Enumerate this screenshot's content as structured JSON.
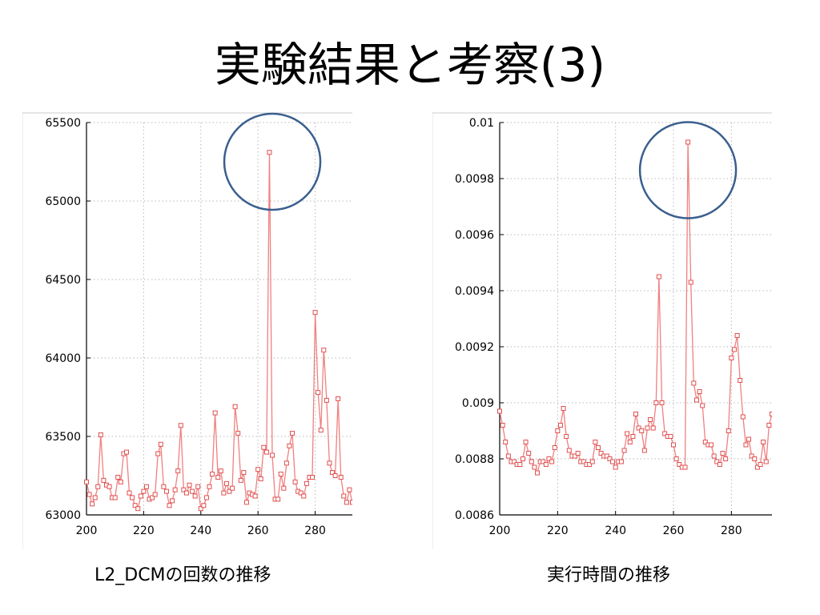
{
  "slide": {
    "title": "実験結果と考察(3)",
    "captions": [
      "L2_DCMの回数の推移",
      "実行時間の推移"
    ]
  },
  "colors": {
    "series": "#f08080",
    "marker": "#e05050",
    "circle": "#3a5f8f",
    "grid": "#b8b8b8"
  },
  "chart_data": [
    {
      "type": "line",
      "xlim": [
        200,
        293
      ],
      "ylim": [
        63000,
        65500
      ],
      "xticks": [
        200,
        220,
        240,
        260,
        280
      ],
      "yticks": [
        63000,
        63500,
        64000,
        64500,
        65000,
        65500
      ],
      "ytick_labels": [
        "63000",
        "63500",
        "64000",
        "64500",
        "65000",
        "65500"
      ],
      "grid": true,
      "annotation": {
        "type": "circle",
        "x": 265,
        "y": 65250
      },
      "series": [
        {
          "x": [
            200,
            201,
            202,
            203,
            204,
            205,
            206,
            207,
            208,
            209,
            210,
            211,
            212,
            213,
            214,
            215,
            216,
            217,
            218,
            219,
            220,
            221,
            222,
            223,
            224,
            225,
            226,
            227,
            228,
            229,
            230,
            231,
            232,
            233,
            234,
            235,
            236,
            237,
            238,
            239,
            240,
            241,
            242,
            243,
            244,
            245,
            246,
            247,
            248,
            249,
            250,
            251,
            252,
            253,
            254,
            255,
            256,
            257,
            258,
            259,
            260,
            261,
            262,
            263,
            264,
            265,
            266,
            267,
            268,
            269,
            270,
            271,
            272,
            273,
            274,
            275,
            276,
            277,
            278,
            279,
            280,
            281,
            282,
            283,
            284,
            285,
            286,
            287,
            288,
            289,
            290,
            291,
            292,
            293
          ],
          "y": [
            63210,
            63130,
            63070,
            63110,
            63180,
            63510,
            63220,
            63190,
            63180,
            63110,
            63110,
            63240,
            63210,
            63390,
            63400,
            63140,
            63110,
            63060,
            63040,
            63120,
            63150,
            63180,
            63100,
            63110,
            63130,
            63390,
            63450,
            63180,
            63150,
            63060,
            63090,
            63160,
            63280,
            63570,
            63160,
            63140,
            63190,
            63150,
            63120,
            63180,
            63040,
            63060,
            63110,
            63180,
            63260,
            63650,
            63240,
            63280,
            63140,
            63200,
            63150,
            63170,
            63690,
            63520,
            63220,
            63270,
            63080,
            63140,
            63130,
            63120,
            63290,
            63230,
            63430,
            63400,
            65310,
            63380,
            63100,
            63100,
            63260,
            63170,
            63330,
            63440,
            63520,
            63210,
            63150,
            63140,
            63120,
            63200,
            63240,
            63240,
            64290,
            63780,
            63540,
            64050,
            63730,
            63330,
            63270,
            63250,
            63740,
            63240,
            63120,
            63080,
            63160,
            63080
          ]
        }
      ]
    },
    {
      "type": "line",
      "xlim": [
        200,
        294
      ],
      "ylim": [
        0.0086,
        0.01
      ],
      "xticks": [
        200,
        220,
        240,
        260,
        280
      ],
      "yticks": [
        0.0086,
        0.0088,
        0.009,
        0.0092,
        0.0094,
        0.0096,
        0.0098,
        0.01
      ],
      "ytick_labels": [
        "0.0086",
        "0.0088",
        "0.009",
        "0.0092",
        "0.0094",
        "0.0096",
        "0.0098",
        "0.01"
      ],
      "grid": true,
      "annotation": {
        "type": "circle",
        "x": 265,
        "y": 0.00983
      },
      "series": [
        {
          "x": [
            200,
            201,
            202,
            203,
            204,
            205,
            206,
            207,
            208,
            209,
            210,
            211,
            212,
            213,
            214,
            215,
            216,
            217,
            218,
            219,
            220,
            221,
            222,
            223,
            224,
            225,
            226,
            227,
            228,
            229,
            230,
            231,
            232,
            233,
            234,
            235,
            236,
            237,
            238,
            239,
            240,
            241,
            242,
            243,
            244,
            245,
            246,
            247,
            248,
            249,
            250,
            251,
            252,
            253,
            254,
            255,
            256,
            257,
            258,
            259,
            260,
            261,
            262,
            263,
            264,
            265,
            266,
            267,
            268,
            269,
            270,
            271,
            272,
            273,
            274,
            275,
            276,
            277,
            278,
            279,
            280,
            281,
            282,
            283,
            284,
            285,
            286,
            287,
            288,
            289,
            290,
            291,
            292,
            293,
            294
          ],
          "y": [
            0.00897,
            0.00892,
            0.00886,
            0.00881,
            0.00879,
            0.00879,
            0.00878,
            0.00878,
            0.0088,
            0.00886,
            0.00882,
            0.00879,
            0.00877,
            0.00875,
            0.00879,
            0.00879,
            0.00878,
            0.0088,
            0.00879,
            0.00884,
            0.0089,
            0.00892,
            0.00898,
            0.00888,
            0.00883,
            0.00881,
            0.00881,
            0.00882,
            0.00879,
            0.00879,
            0.00878,
            0.00878,
            0.00879,
            0.00886,
            0.00884,
            0.00882,
            0.00881,
            0.00881,
            0.0088,
            0.00879,
            0.00877,
            0.00879,
            0.00879,
            0.00883,
            0.00889,
            0.00886,
            0.00888,
            0.00896,
            0.00891,
            0.0089,
            0.00883,
            0.00891,
            0.00894,
            0.00891,
            0.009,
            0.00945,
            0.009,
            0.00889,
            0.00888,
            0.00888,
            0.00885,
            0.0088,
            0.00878,
            0.00877,
            0.00877,
            0.00993,
            0.00943,
            0.00907,
            0.00901,
            0.00904,
            0.00899,
            0.00886,
            0.00885,
            0.00885,
            0.00881,
            0.00879,
            0.00878,
            0.00882,
            0.0088,
            0.0089,
            0.00916,
            0.00919,
            0.00924,
            0.00908,
            0.00895,
            0.00885,
            0.00887,
            0.00881,
            0.0088,
            0.00877,
            0.00878,
            0.00886,
            0.00879,
            0.00892,
            0.00896
          ]
        }
      ]
    }
  ]
}
